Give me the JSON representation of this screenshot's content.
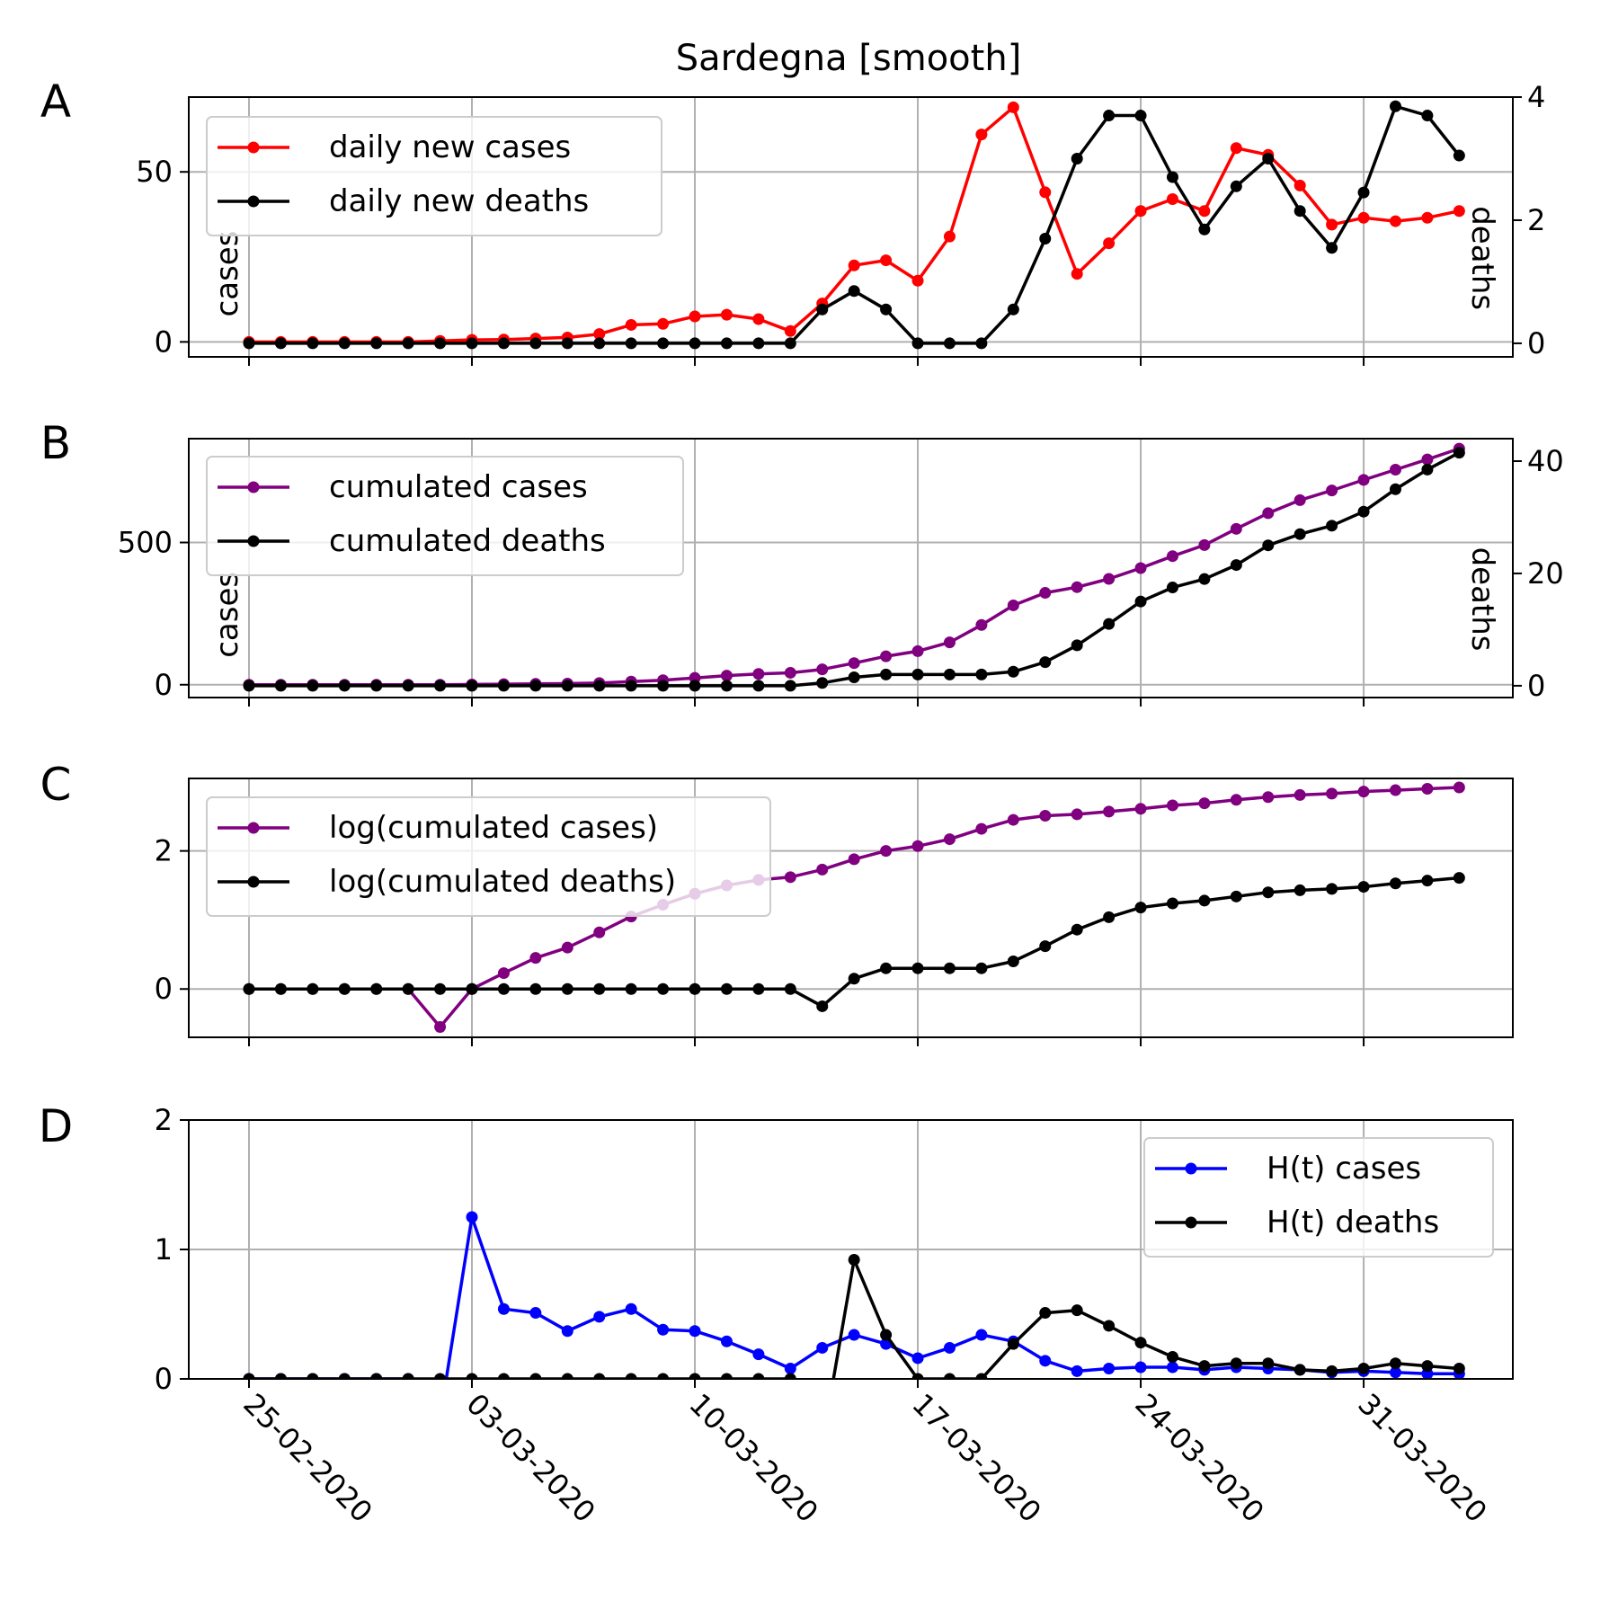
{
  "title": "Sardegna [smooth]",
  "x_tick_labels": [
    "25-02-2020",
    "03-03-2020",
    "10-03-2020",
    "17-03-2020",
    "24-03-2020",
    "31-03-2020"
  ],
  "chart_data": [
    {
      "panel": "A",
      "type": "line",
      "title": "Sardegna [smooth]",
      "x_start": "25-02-2020",
      "n_days": 39,
      "grid": true,
      "legend_position": "upper-left",
      "ylabel_left": "cases",
      "ylabel_right": "deaths",
      "ylim_left": [
        -4.4,
        72
      ],
      "ylim_right": [
        -0.22,
        4.0
      ],
      "yticks_left": [
        0,
        50
      ],
      "yticks_right": [
        0,
        2,
        4
      ],
      "series": [
        {
          "name": "daily new cases",
          "axis": "left",
          "color": "#ff0000",
          "values": [
            0,
            0,
            0,
            0,
            0,
            0,
            0.3,
            0.6,
            0.7,
            1,
            1.3,
            2.3,
            5,
            5.3,
            7.5,
            8,
            6.7,
            3.2,
            11.3,
            22.5,
            24,
            18,
            31,
            61,
            69,
            44,
            20,
            29,
            38.5,
            42,
            38.5,
            57,
            55,
            46,
            34.5,
            36.5,
            35.5,
            36.5,
            38.5
          ]
        },
        {
          "name": "daily new deaths",
          "axis": "right",
          "color": "#000000",
          "values": [
            0,
            0,
            0,
            0,
            0,
            0,
            0,
            0,
            0,
            0,
            0,
            0,
            0,
            0,
            0,
            0,
            0,
            0,
            0.55,
            0.85,
            0.55,
            0,
            0,
            0,
            0.55,
            1.7,
            3,
            3.7,
            3.7,
            2.7,
            1.85,
            2.55,
            3.0,
            2.15,
            1.55,
            2.45,
            3.85,
            3.7,
            3.05
          ]
        }
      ]
    },
    {
      "panel": "B",
      "type": "line",
      "x_start": "25-02-2020",
      "n_days": 39,
      "grid": true,
      "legend_position": "upper-left",
      "ylabel_left": "cases",
      "ylabel_right": "deaths",
      "ylim_left": [
        -45,
        865
      ],
      "ylim_right": [
        -2.1,
        44
      ],
      "yticks_left": [
        0,
        500
      ],
      "yticks_right": [
        0,
        20,
        40
      ],
      "series": [
        {
          "name": "cumulated cases",
          "axis": "left",
          "color": "#800080",
          "values": [
            0,
            0,
            0,
            0,
            0,
            0,
            0,
            1,
            2,
            3,
            4,
            6,
            11,
            16,
            24,
            32,
            38,
            42,
            54,
            76,
            100,
            118,
            149,
            210,
            279,
            323,
            343,
            372,
            410,
            452,
            491,
            548,
            603,
            649,
            683,
            720,
            756,
            792,
            830
          ]
        },
        {
          "name": "cumulated deaths",
          "axis": "right",
          "color": "#000000",
          "values": [
            0,
            0,
            0,
            0,
            0,
            0,
            0,
            0,
            0,
            0,
            0,
            0,
            0,
            0,
            0,
            0,
            0,
            0,
            0.5,
            1.5,
            2,
            2,
            2,
            2,
            2.5,
            4.2,
            7.2,
            11,
            15,
            17.5,
            19,
            21.5,
            25,
            27,
            28.5,
            31,
            35,
            38.5,
            41.5
          ]
        }
      ]
    },
    {
      "panel": "C",
      "type": "line",
      "x_start": "25-02-2020",
      "n_days": 39,
      "grid": true,
      "legend_position": "upper-left",
      "ylim": [
        -0.7,
        3.05
      ],
      "yticks": [
        0,
        2
      ],
      "series": [
        {
          "name": "log(cumulated cases)",
          "color": "#800080",
          "values": [
            0,
            0,
            0,
            0,
            0,
            0,
            -0.55,
            0,
            0.23,
            0.45,
            0.6,
            0.82,
            1.05,
            1.22,
            1.38,
            1.5,
            1.58,
            1.62,
            1.73,
            1.88,
            2.0,
            2.07,
            2.17,
            2.32,
            2.45,
            2.51,
            2.53,
            2.57,
            2.61,
            2.66,
            2.69,
            2.74,
            2.78,
            2.81,
            2.83,
            2.86,
            2.88,
            2.9,
            2.92
          ]
        },
        {
          "name": "log(cumulated deaths)",
          "color": "#000000",
          "values": [
            0,
            0,
            0,
            0,
            0,
            0,
            0,
            0,
            0,
            0,
            0,
            0,
            0,
            0,
            0,
            0,
            0,
            0,
            -0.25,
            0.15,
            0.3,
            0.3,
            0.3,
            0.3,
            0.4,
            0.62,
            0.86,
            1.04,
            1.18,
            1.24,
            1.28,
            1.34,
            1.4,
            1.43,
            1.45,
            1.48,
            1.53,
            1.57,
            1.61
          ]
        }
      ]
    },
    {
      "panel": "D",
      "type": "line",
      "x_start": "25-02-2020",
      "n_days": 39,
      "grid": true,
      "legend_position": "upper-right",
      "ylim": [
        0,
        2
      ],
      "yticks": [
        0,
        1,
        2
      ],
      "series": [
        {
          "name": "H(t) cases",
          "color": "#0000ff",
          "values": [
            0,
            0,
            0,
            0,
            0,
            0,
            -0.3,
            1.25,
            0.54,
            0.51,
            0.37,
            0.48,
            0.54,
            0.38,
            0.37,
            0.29,
            0.19,
            0.08,
            0.24,
            0.34,
            0.27,
            0.16,
            0.24,
            0.34,
            0.29,
            0.14,
            0.06,
            0.08,
            0.09,
            0.09,
            0.07,
            0.09,
            0.08,
            0.07,
            0.05,
            0.06,
            0.05,
            0.04,
            0.04
          ]
        },
        {
          "name": "H(t) deaths",
          "color": "#000000",
          "values": [
            0,
            0,
            0,
            0,
            0,
            0,
            0,
            0,
            0,
            0,
            0,
            0,
            0,
            0,
            0,
            0,
            0,
            0,
            -0.5,
            0.92,
            0.34,
            0,
            0,
            0,
            0.27,
            0.51,
            0.53,
            0.41,
            0.28,
            0.17,
            0.1,
            0.12,
            0.12,
            0.07,
            0.06,
            0.08,
            0.12,
            0.1,
            0.08
          ]
        }
      ]
    }
  ],
  "panel_letters": [
    "A",
    "B",
    "C",
    "D"
  ]
}
